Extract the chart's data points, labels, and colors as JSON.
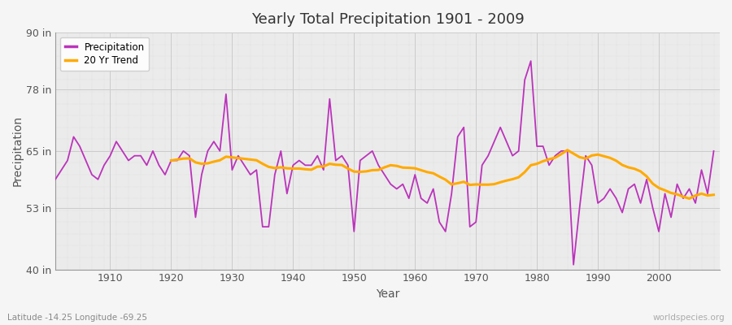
{
  "title": "Yearly Total Precipitation 1901 - 2009",
  "xlabel": "Year",
  "ylabel": "Precipitation",
  "subtitle": "Latitude -14.25 Longitude -69.25",
  "watermark": "worldspecies.org",
  "ylim": [
    40,
    90
  ],
  "yticks": [
    40,
    53,
    65,
    78,
    90
  ],
  "ytick_labels": [
    "40 in",
    "53 in",
    "65 in",
    "78 in",
    "90 in"
  ],
  "xticks": [
    1910,
    1920,
    1930,
    1940,
    1950,
    1960,
    1970,
    1980,
    1990,
    2000
  ],
  "start_year": 1901,
  "precip_color": "#bb33bb",
  "trend_color": "#ffaa00",
  "bg_color": "#f0f0f0",
  "plot_bg_color": "#e8e8e8",
  "grid_color": "#d8d8d8",
  "precipitation": [
    59,
    61,
    63,
    68,
    66,
    63,
    60,
    59,
    62,
    64,
    67,
    65,
    63,
    64,
    64,
    62,
    65,
    62,
    60,
    63,
    63,
    65,
    64,
    51,
    60,
    65,
    67,
    65,
    77,
    61,
    64,
    62,
    60,
    61,
    49,
    49,
    60,
    65,
    56,
    62,
    63,
    62,
    62,
    64,
    61,
    76,
    63,
    64,
    62,
    48,
    63,
    64,
    65,
    62,
    60,
    58,
    57,
    58,
    55,
    60,
    55,
    54,
    57,
    50,
    48,
    56,
    68,
    70,
    49,
    50,
    62,
    64,
    67,
    70,
    67,
    64,
    65,
    80,
    84,
    66,
    66,
    62,
    64,
    65,
    65,
    41,
    53,
    64,
    62,
    54,
    55,
    57,
    55,
    52,
    57,
    58,
    54,
    59,
    53,
    48,
    56,
    51,
    58,
    55,
    57,
    54,
    61,
    56,
    65
  ]
}
